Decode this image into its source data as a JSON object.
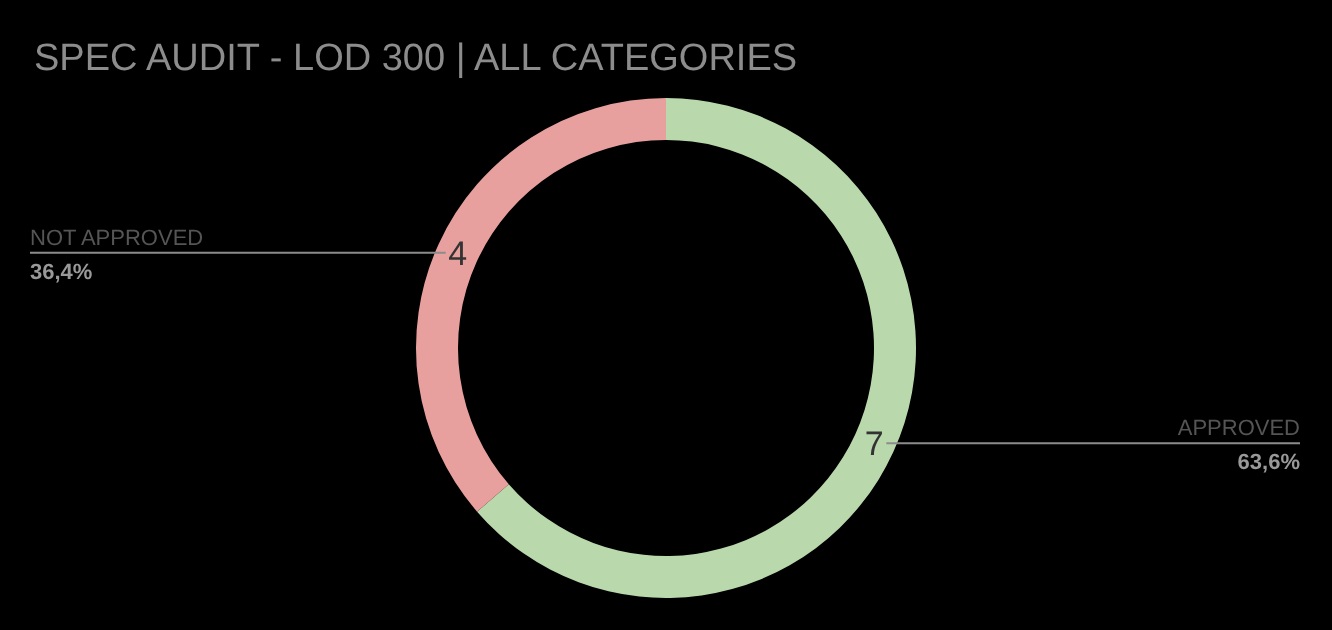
{
  "chart_data": {
    "type": "donut",
    "title": "SPEC AUDIT - LOD 300 | ALL CATEGORIES",
    "categories": [
      "APPROVED",
      "NOT APPROVED"
    ],
    "values": [
      7,
      4
    ],
    "colors": [
      "#b9d9ac",
      "#e8a09e"
    ],
    "data_labels": true,
    "annotations": [
      "63,6%",
      "36,4%"
    ]
  }
}
